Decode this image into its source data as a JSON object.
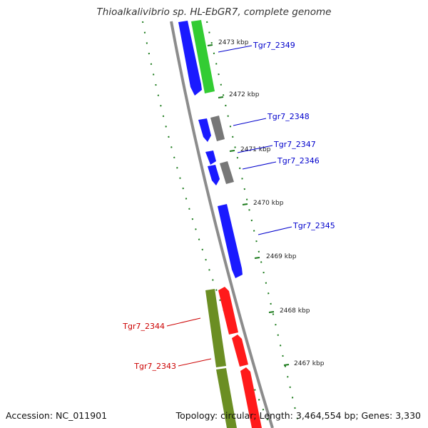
{
  "title": "Thioalkalivibrio sp. HL-EbGR7, complete genome",
  "footer": {
    "accession": "Accession: NC_011901",
    "summary": "Topology: circular; Length: 3,464,554 bp; Genes: 3,330"
  },
  "colors": {
    "backbone": "#8c8c8c",
    "tick": "#1a7a1a",
    "forward_label": "#0000cc",
    "reverse_label": "#cc0000",
    "gene_blue": "#1a1aff",
    "gene_green": "#33cc33",
    "gene_grey": "#777777",
    "gene_red": "#ff1a1a",
    "gene_olive": "#6b8e23"
  },
  "kbp_labels": [
    "2473 kbp",
    "2472 kbp",
    "2471 kbp",
    "2470 kbp",
    "2469 kbp",
    "2468 kbp",
    "2467 kbp"
  ],
  "genes_forward": [
    {
      "locus": "Tgr7_2349"
    },
    {
      "locus": "Tgr7_2348"
    },
    {
      "locus": "Tgr7_2347"
    },
    {
      "locus": "Tgr7_2346"
    },
    {
      "locus": "Tgr7_2345"
    }
  ],
  "genes_reverse": [
    {
      "locus": "Tgr7_2344"
    },
    {
      "locus": "Tgr7_2343"
    }
  ]
}
